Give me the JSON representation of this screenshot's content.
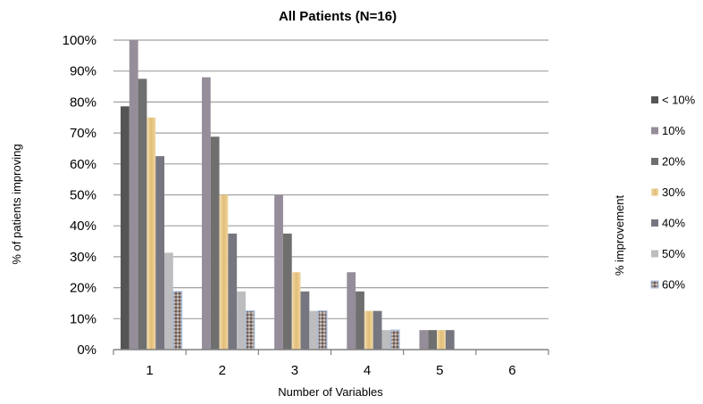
{
  "chart_data": {
    "type": "bar",
    "title": "All Patients (N=16)",
    "xlabel": "Number of Variables",
    "ylabel": "% of patients  improving",
    "legend_title": "% improvement",
    "legend_position": "right",
    "categories": [
      "1",
      "2",
      "3",
      "4",
      "5",
      "6"
    ],
    "ylim": [
      0,
      100
    ],
    "y_ticks": [
      "0%",
      "10%",
      "20%",
      "30%",
      "40%",
      "50%",
      "60%",
      "70%",
      "80%",
      "90%",
      "100%"
    ],
    "grid": true,
    "series": [
      {
        "name": "< 10%",
        "color": "#555555",
        "values": [
          78.6,
          0,
          0,
          0,
          0,
          0
        ]
      },
      {
        "name": "10%",
        "color": "#958e9a",
        "values": [
          100,
          88,
          50,
          25,
          6.3,
          0
        ]
      },
      {
        "name": "20%",
        "color": "#6f6f6f",
        "values": [
          87.5,
          68.8,
          37.5,
          18.8,
          6.3,
          0
        ]
      },
      {
        "name": "30%",
        "color": "#e8c98c",
        "values": [
          75,
          50,
          25,
          12.5,
          6.3,
          0
        ]
      },
      {
        "name": "40%",
        "color": "#767680",
        "values": [
          62.5,
          37.5,
          18.8,
          12.5,
          6.3,
          0
        ]
      },
      {
        "name": "50%",
        "color": "#bdbcbe",
        "values": [
          31.3,
          18.8,
          12.5,
          6.3,
          0,
          0
        ]
      },
      {
        "name": "60%",
        "color": "#8e8a92",
        "values": [
          18.8,
          12.5,
          12.5,
          6.3,
          0,
          0
        ]
      }
    ]
  }
}
